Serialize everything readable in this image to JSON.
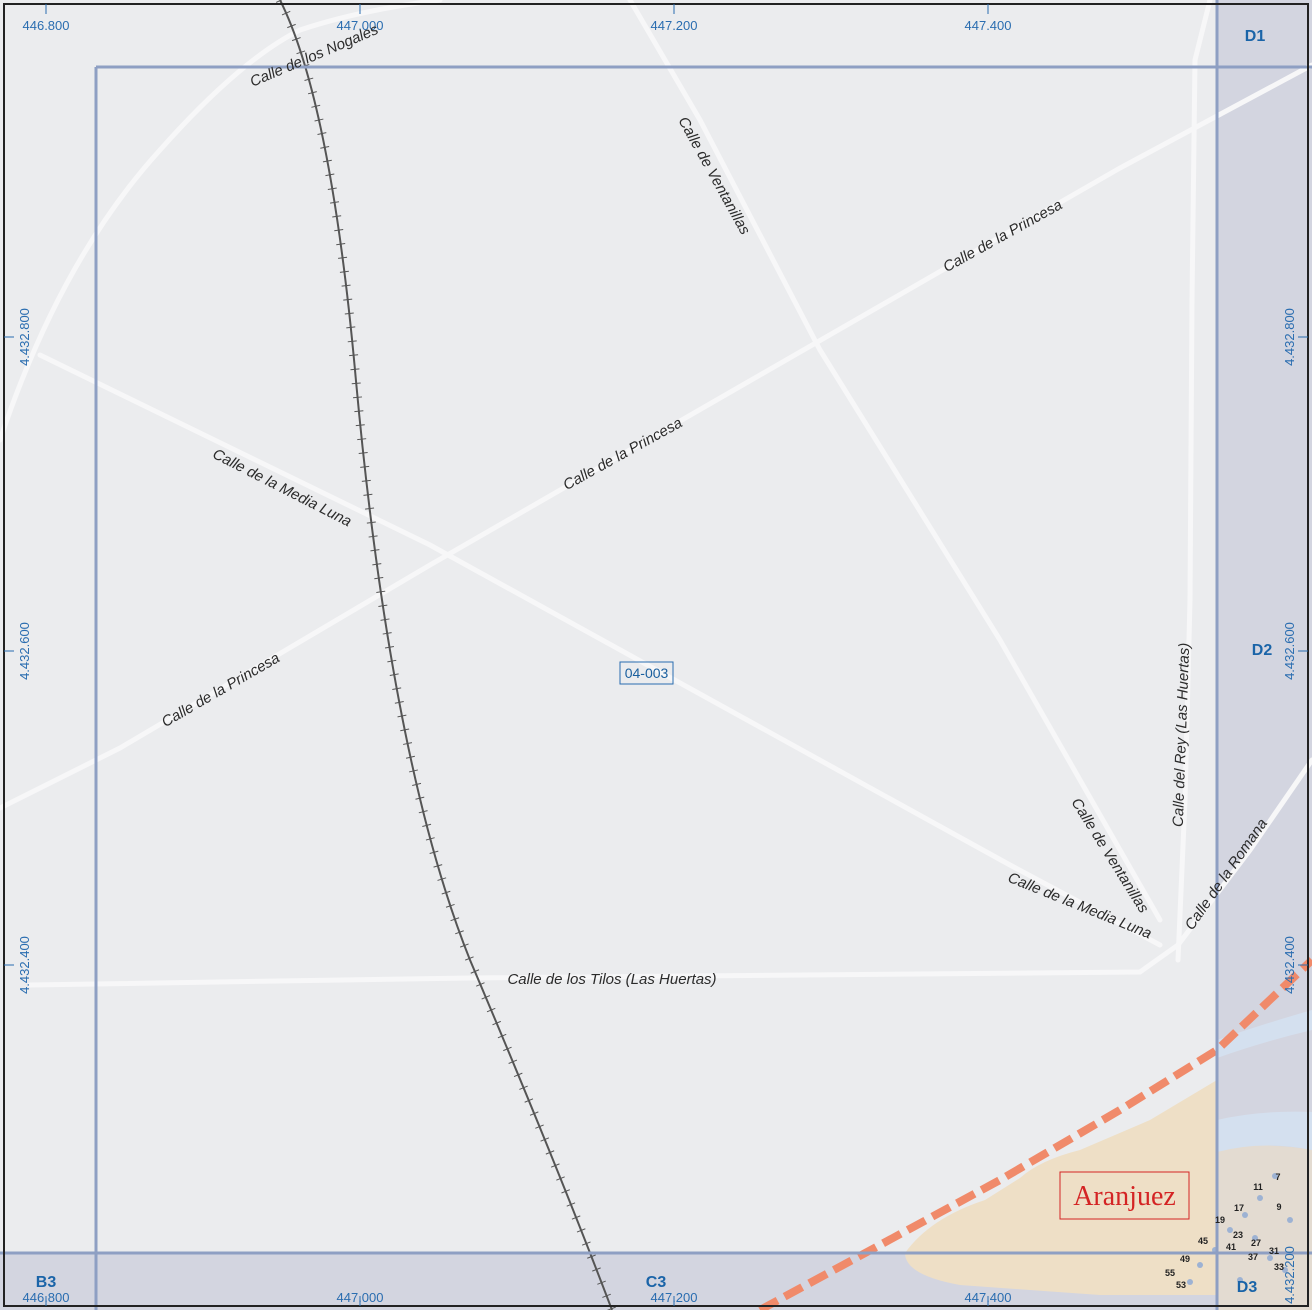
{
  "map": {
    "sheet_id": "04-003",
    "town_label": "Aranjuez",
    "colors": {
      "background": "#ebecee",
      "road": "#f7f7f8",
      "grid": "#8e9fc3",
      "margin_band": "#d3d5e0",
      "railway": "#555555",
      "boundary": "#f08a6a",
      "urban_area": "#eedfc6",
      "water": "#d4e0ef",
      "label_blue": "#2a6db0",
      "town_red": "#d42424"
    },
    "coords": {
      "top_x": [
        "446.800",
        "447.000",
        "447.200",
        "447.400"
      ],
      "bottom_x": [
        "446.800",
        "447.000",
        "447.200",
        "447.400"
      ],
      "left_y": [
        "4.432.800",
        "4.432.600",
        "4.432.400"
      ],
      "right_y": [
        "4.432.800",
        "4.432.600",
        "4.432.400",
        "4.432.200"
      ]
    },
    "grid_cells": [
      "D1",
      "D2",
      "D3",
      "B3",
      "C3"
    ],
    "streets": [
      "Calle de los Nogales",
      "Calle de Ventanillas",
      "Calle de la Princesa",
      "Calle de la Princesa",
      "Calle de la Media Luna",
      "Calle de la Princesa",
      "Calle del Rey (Las Huertas)",
      "Calle de Ventanillas",
      "Calle de la Romana",
      "Calle de la Media Luna",
      "Calle de los Tilos (Las Huertas)"
    ],
    "house_numbers": [
      "7",
      "11",
      "9",
      "17",
      "19",
      "23",
      "27",
      "31",
      "33",
      "37",
      "41",
      "45",
      "49",
      "55",
      "53"
    ]
  }
}
